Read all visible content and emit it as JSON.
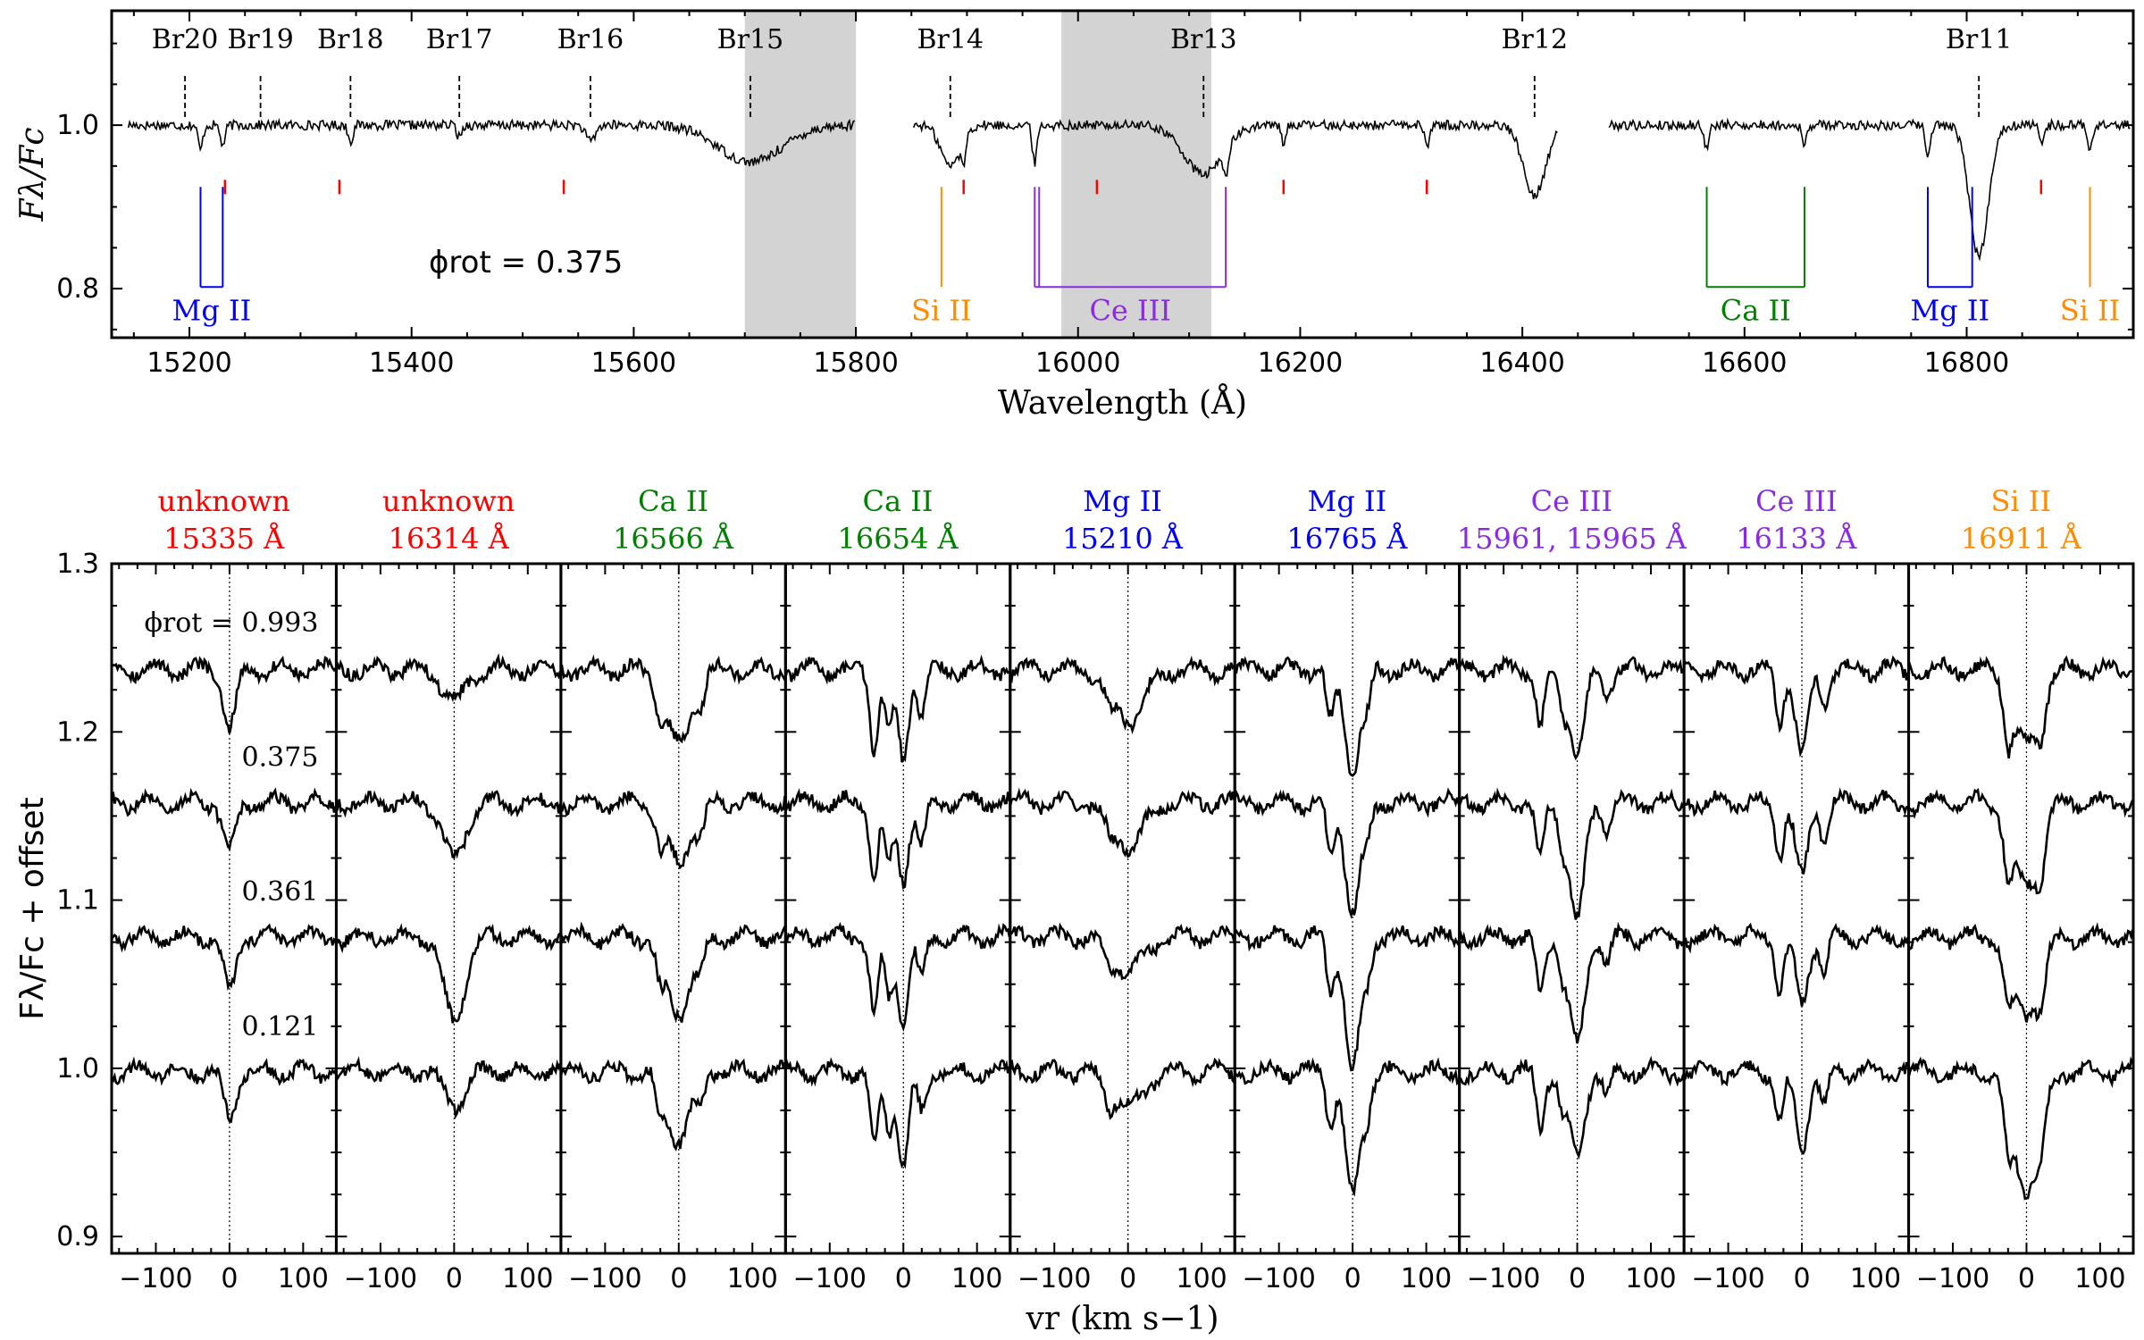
{
  "colors": {
    "unknown": "#ff0000",
    "CaII": "#008000",
    "MgII": "#0000ff",
    "CeIII": "#8a2be2",
    "SiII": "#ff8c00",
    "shade": "#d3d3d3",
    "line": "#000000"
  },
  "chart_data": [
    {
      "type": "line",
      "title": "",
      "xlabel": "Wavelength (Å)",
      "ylabel": "Fλ/Fc",
      "xlim": [
        15130,
        16950
      ],
      "ylim": [
        0.74,
        1.14
      ],
      "xticks": [
        15200,
        15400,
        15600,
        15800,
        16000,
        16200,
        16400,
        16600,
        16800
      ],
      "yticks": [
        0.8,
        1.0
      ],
      "ytick_labels": [
        "0.8",
        "1.0"
      ],
      "phase_label": "ϕrot = 0.375",
      "shaded_regions": [
        [
          15700,
          15800
        ],
        [
          15985,
          16120
        ]
      ],
      "brackett_lines": [
        {
          "label": "Br20",
          "wl": 15196
        },
        {
          "label": "Br19",
          "wl": 15264
        },
        {
          "label": "Br18",
          "wl": 15345
        },
        {
          "label": "Br17",
          "wl": 15443
        },
        {
          "label": "Br16",
          "wl": 15561
        },
        {
          "label": "Br15",
          "wl": 15705
        },
        {
          "label": "Br14",
          "wl": 15885
        },
        {
          "label": "Br13",
          "wl": 16113
        },
        {
          "label": "Br12",
          "wl": 16411
        },
        {
          "label": "Br11",
          "wl": 16811
        }
      ],
      "unknown_markers": [
        15232,
        15335,
        15537,
        15897,
        16017,
        16185,
        16314,
        16867
      ],
      "ion_groups": [
        {
          "label": "Mg II",
          "color_key": "MgII",
          "lines": [
            15210,
            15230
          ],
          "bracket": true
        },
        {
          "label": "Si II",
          "color_key": "SiII",
          "lines": [
            15877
          ],
          "bracket": false
        },
        {
          "label": "Ce III",
          "color_key": "CeIII",
          "lines": [
            15961,
            15965,
            16133
          ],
          "bracket": true
        },
        {
          "label": "Ca II",
          "color_key": "CaII",
          "lines": [
            16566,
            16654
          ],
          "bracket": true
        },
        {
          "label": "Mg II",
          "color_key": "MgII",
          "lines": [
            16765,
            16805
          ],
          "bracket": true
        },
        {
          "label": "Si II",
          "color_key": "SiII",
          "lines": [
            16911
          ],
          "bracket": false
        }
      ],
      "spectrum_segments": [
        {
          "range": [
            15145,
            15800
          ],
          "features": [
            [
              15210,
              0.03,
              3
            ],
            [
              15230,
              0.025,
              3
            ],
            [
              15345,
              0.02,
              3
            ],
            [
              15443,
              0.015,
              3
            ],
            [
              15561,
              0.02,
              6
            ],
            [
              15705,
              0.045,
              40
            ]
          ]
        },
        {
          "range": [
            15852,
            16432
          ],
          "features": [
            [
              15885,
              0.05,
              12
            ],
            [
              15897,
              0.03,
              3
            ],
            [
              15961,
              0.045,
              3
            ],
            [
              16113,
              0.06,
              25
            ],
            [
              16133,
              0.03,
              3
            ],
            [
              16185,
              0.02,
              3
            ],
            [
              16314,
              0.025,
              3
            ],
            [
              16411,
              0.085,
              14
            ]
          ]
        },
        {
          "range": [
            16478,
            16948
          ],
          "features": [
            [
              16566,
              0.03,
              3
            ],
            [
              16654,
              0.025,
              3
            ],
            [
              16765,
              0.04,
              3
            ],
            [
              16811,
              0.16,
              12
            ],
            [
              16867,
              0.02,
              3
            ],
            [
              16911,
              0.03,
              3
            ]
          ]
        }
      ],
      "continuum": 1.0
    },
    {
      "type": "line",
      "xlabel": "vr (km s−1)",
      "ylabel": "Fλ/Fc + offset",
      "xlim": [
        -160,
        145
      ],
      "ylim": [
        0.89,
        1.3
      ],
      "xticks": [
        -100,
        0,
        100
      ],
      "xtick_labels": [
        "−100",
        "0",
        "100"
      ],
      "yticks": [
        0.9,
        1.0,
        1.1,
        1.2,
        1.3
      ],
      "ytick_labels": [
        "0.9",
        "1.0",
        "1.1",
        "1.2",
        "1.3"
      ],
      "phase_labels": [
        {
          "text": "0.993",
          "prefix": "ϕrot = ",
          "y": 1.265
        },
        {
          "text": "0.375",
          "prefix": "",
          "y": 1.185
        },
        {
          "text": "0.361",
          "prefix": "",
          "y": 1.105
        },
        {
          "text": "0.121",
          "prefix": "",
          "y": 1.025
        }
      ],
      "offsets": [
        1.237,
        1.158,
        1.078,
        0.998
      ],
      "panels": [
        {
          "ion": "unknown",
          "wavelength": "15335 Å",
          "color_key": "unknown",
          "depths": [
            0.035,
            0.03,
            0.033,
            0.027
          ],
          "width": 12,
          "satellites": []
        },
        {
          "ion": "unknown",
          "wavelength": "16314 Å",
          "color_key": "unknown",
          "depths": [
            0.02,
            0.035,
            0.05,
            0.02
          ],
          "width": 20,
          "satellites": []
        },
        {
          "ion": "Ca II",
          "wavelength": "16566 Å",
          "color_key": "CaII",
          "depths": [
            0.045,
            0.035,
            0.045,
            0.04
          ],
          "width": 22,
          "satellites": [
            [
              -25,
              0.02
            ],
            [
              30,
              0.015
            ]
          ]
        },
        {
          "ion": "Ca II",
          "wavelength": "16654 Å",
          "color_key": "CaII",
          "depths": [
            0.055,
            0.045,
            0.05,
            0.055
          ],
          "width": 10,
          "satellites": [
            [
              -40,
              0.045
            ],
            [
              -20,
              0.035
            ],
            [
              25,
              0.025
            ]
          ]
        },
        {
          "ion": "Mg II",
          "wavelength": "15210 Å",
          "color_key": "MgII",
          "depths": [
            0.03,
            0.025,
            0.02,
            0.02
          ],
          "width": 30,
          "satellites": [
            [
              -25,
              0.01
            ]
          ]
        },
        {
          "ion": "Mg II",
          "wavelength": "16765 Å",
          "color_key": "MgII",
          "depths": [
            0.06,
            0.065,
            0.08,
            0.075
          ],
          "width": 14,
          "satellites": [
            [
              -30,
              0.03
            ],
            [
              20,
              0.02
            ]
          ]
        },
        {
          "ion": "Ce III",
          "wavelength": "15961, 15965 Å",
          "color_key": "CeIII",
          "depths": [
            0.05,
            0.07,
            0.065,
            0.05
          ],
          "width": 14,
          "satellites": [
            [
              -50,
              0.035
            ],
            [
              -20,
              0.02
            ],
            [
              40,
              0.015
            ]
          ]
        },
        {
          "ion": "Ce III",
          "wavelength": "16133 Å",
          "color_key": "CeIII",
          "depths": [
            0.05,
            0.045,
            0.04,
            0.045
          ],
          "width": 12,
          "satellites": [
            [
              -30,
              0.03
            ],
            [
              30,
              0.02
            ]
          ]
        },
        {
          "ion": "Si II",
          "wavelength": "16911 Å",
          "color_key": "SiII",
          "depths": [
            0.045,
            0.05,
            0.045,
            0.07
          ],
          "width": 24,
          "satellites": [
            [
              -25,
              0.03
            ],
            [
              20,
              0.02
            ]
          ]
        }
      ]
    }
  ]
}
